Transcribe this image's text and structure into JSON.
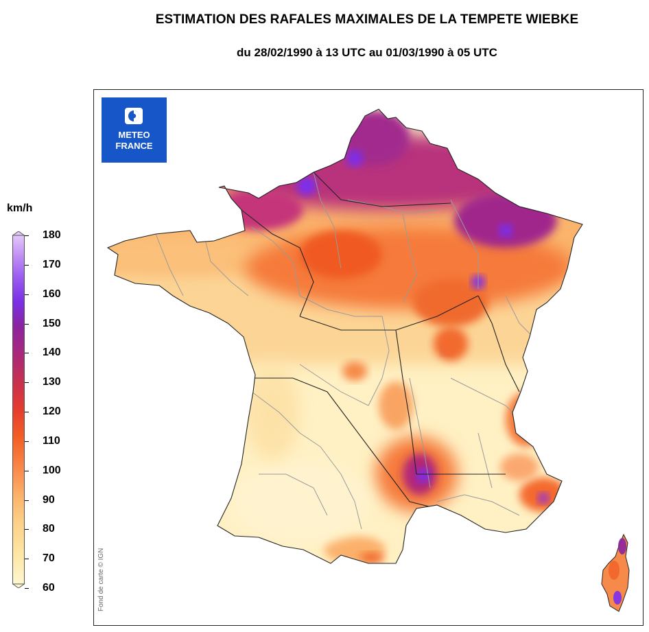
{
  "title": "ESTIMATION DES RAFALES MAXIMALES DE LA TEMPETE WIEBKE",
  "subtitle": "du 28/02/1990 à 13 UTC au 01/03/1990 à 05 UTC",
  "logo": {
    "line1": "METEO",
    "line2": "FRANCE",
    "icon": "meteo-france-logo-icon",
    "color": "#1756c8"
  },
  "credit": "Fond de carte © IGN",
  "legend": {
    "unit": "km/h",
    "ticks": [
      "180",
      "170",
      "160",
      "150",
      "140",
      "130",
      "120",
      "110",
      "100",
      "90",
      "80",
      "70",
      "60"
    ],
    "colors": [
      "#fff6d0",
      "#ffe7a6",
      "#fdd28a",
      "#fcb46c",
      "#f9894a",
      "#f35f25",
      "#e53c2f",
      "#c8304f",
      "#a9287a",
      "#8b24a0",
      "#7a2fe6",
      "#9a5cf0",
      "#c08ef5",
      "#e4c8fa"
    ]
  },
  "map": {
    "region": "France métropolitaine",
    "palette": {
      "low": "#fff3c7",
      "mid": "#fbb06a",
      "high": "#f35a22",
      "very_high": "#a62e8a",
      "extreme": "#7a2ef0"
    }
  }
}
